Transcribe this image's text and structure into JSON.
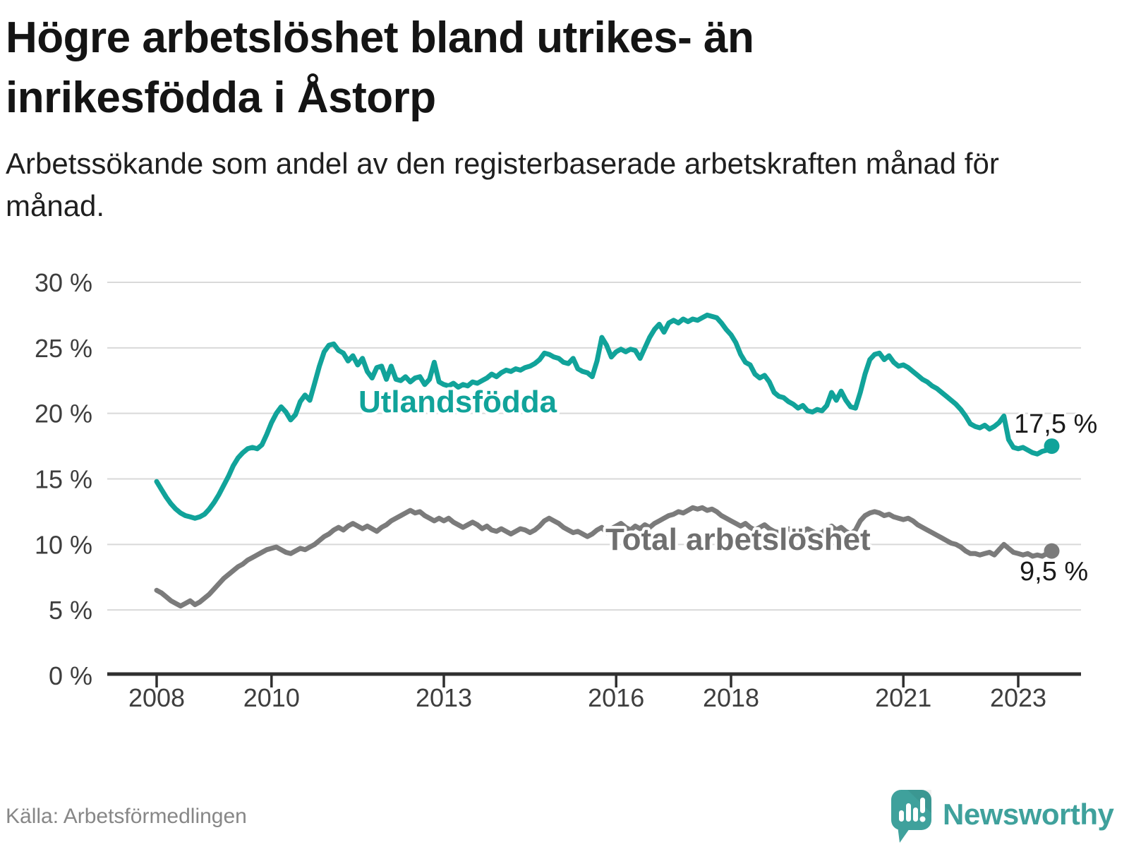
{
  "title": "Högre arbetslöshet bland utrikes- än inrikesfödda i Åstorp",
  "subtitle": "Arbetssökande som andel av den registerbaserade arbetskraften månad för månad.",
  "source": "Källa: Arbetsförmedlingen",
  "logo_text": "Newsworthy",
  "colors": {
    "teal_series": "#11a39a",
    "gray_series": "#7b7b7b",
    "gray_label": "#6f6f6f",
    "value_label": "#1a1a1a",
    "axis": "#2f2f2f",
    "tick_label": "#3e3e3e",
    "gridline": "#d9d9d9",
    "logo": "#3fa19c"
  },
  "chart_data": {
    "type": "line",
    "title": "Högre arbetslöshet bland utrikes- än inrikesfödda i Åstorp",
    "xlabel": "",
    "ylabel": "Arbetssökande som andel av den registerbaserade arbetskraften",
    "x_start_year": 2008,
    "x_start_month": 1,
    "months_per_point": 1,
    "ylim": [
      0,
      30
    ],
    "grid": true,
    "legend_position": "inline-labels",
    "y_tick_values": [
      0,
      5,
      10,
      15,
      20,
      25,
      30
    ],
    "y_tick_labels": [
      "0 %",
      "5 %",
      "10 %",
      "15 %",
      "20 %",
      "25 %",
      "30 %"
    ],
    "x_tick_years": [
      2008,
      2010,
      2013,
      2016,
      2018,
      2021,
      2023
    ],
    "x_tick_labels": [
      "2008",
      "2010",
      "2013",
      "2016",
      "2018",
      "2021",
      "2023"
    ],
    "series": [
      {
        "name": "Utlandsfödda",
        "color": "#11a39a",
        "end_value_label": "17,5 %",
        "values": [
          14.8,
          14.2,
          13.6,
          13.1,
          12.7,
          12.4,
          12.2,
          12.1,
          12.0,
          12.1,
          12.3,
          12.7,
          13.2,
          13.8,
          14.5,
          15.2,
          16.0,
          16.6,
          17.0,
          17.3,
          17.4,
          17.3,
          17.6,
          18.4,
          19.3,
          20.0,
          20.5,
          20.1,
          19.5,
          19.9,
          20.9,
          21.4,
          21.0,
          22.3,
          23.6,
          24.7,
          25.2,
          25.3,
          24.8,
          24.6,
          24.0,
          24.4,
          23.7,
          24.2,
          23.2,
          22.7,
          23.5,
          23.6,
          22.6,
          23.6,
          22.6,
          22.5,
          22.8,
          22.4,
          22.7,
          22.8,
          22.2,
          22.6,
          23.9,
          22.4,
          22.2,
          22.1,
          22.3,
          22.0,
          22.2,
          22.1,
          22.4,
          22.3,
          22.5,
          22.7,
          23.0,
          22.8,
          23.1,
          23.3,
          23.2,
          23.4,
          23.3,
          23.5,
          23.6,
          23.8,
          24.1,
          24.6,
          24.5,
          24.3,
          24.2,
          23.9,
          23.8,
          24.2,
          23.4,
          23.2,
          23.1,
          22.8,
          24.0,
          25.8,
          25.2,
          24.3,
          24.7,
          24.9,
          24.7,
          24.9,
          24.8,
          24.2,
          25.0,
          25.8,
          26.4,
          26.8,
          26.2,
          26.9,
          27.1,
          26.9,
          27.2,
          27.0,
          27.2,
          27.1,
          27.3,
          27.5,
          27.4,
          27.3,
          26.9,
          26.4,
          26.0,
          25.4,
          24.5,
          23.9,
          23.7,
          23.0,
          22.7,
          22.9,
          22.4,
          21.6,
          21.3,
          21.2,
          20.9,
          20.7,
          20.4,
          20.6,
          20.2,
          20.1,
          20.3,
          20.2,
          20.6,
          21.6,
          21.0,
          21.7,
          21.0,
          20.5,
          20.4,
          21.6,
          23.0,
          24.1,
          24.5,
          24.6,
          24.1,
          24.4,
          23.9,
          23.6,
          23.7,
          23.5,
          23.2,
          22.9,
          22.6,
          22.4,
          22.1,
          21.9,
          21.6,
          21.3,
          21.0,
          20.7,
          20.3,
          19.8,
          19.2,
          19.0,
          18.9,
          19.1,
          18.8,
          19.0,
          19.3,
          19.8,
          18.0,
          17.4,
          17.3,
          17.4,
          17.2,
          17.0,
          16.9,
          17.1,
          17.2,
          17.5
        ]
      },
      {
        "name": "Total arbetslöshet",
        "color": "#7b7b7b",
        "end_value_label": "9,5 %",
        "values": [
          6.5,
          6.3,
          6.0,
          5.7,
          5.5,
          5.3,
          5.5,
          5.7,
          5.4,
          5.6,
          5.9,
          6.2,
          6.6,
          7.0,
          7.4,
          7.7,
          8.0,
          8.3,
          8.5,
          8.8,
          9.0,
          9.2,
          9.4,
          9.6,
          9.7,
          9.8,
          9.6,
          9.4,
          9.3,
          9.5,
          9.7,
          9.6,
          9.8,
          10.0,
          10.3,
          10.6,
          10.8,
          11.1,
          11.3,
          11.1,
          11.4,
          11.6,
          11.4,
          11.2,
          11.4,
          11.2,
          11.0,
          11.3,
          11.5,
          11.8,
          12.0,
          12.2,
          12.4,
          12.6,
          12.4,
          12.5,
          12.2,
          12.0,
          11.8,
          12.0,
          11.8,
          12.0,
          11.7,
          11.5,
          11.3,
          11.5,
          11.7,
          11.5,
          11.2,
          11.4,
          11.1,
          11.0,
          11.2,
          11.0,
          10.8,
          11.0,
          11.2,
          11.1,
          10.9,
          11.1,
          11.4,
          11.8,
          12.0,
          11.8,
          11.6,
          11.3,
          11.1,
          10.9,
          11.0,
          10.8,
          10.6,
          10.8,
          11.1,
          11.3,
          10.9,
          11.2,
          11.4,
          11.6,
          11.3,
          11.1,
          11.4,
          11.2,
          11.5,
          11.3,
          11.6,
          11.8,
          12.0,
          12.2,
          12.3,
          12.5,
          12.4,
          12.6,
          12.8,
          12.7,
          12.8,
          12.6,
          12.7,
          12.5,
          12.2,
          12.0,
          11.8,
          11.6,
          11.4,
          11.6,
          11.3,
          11.1,
          11.3,
          11.5,
          11.2,
          11.0,
          10.9,
          11.1,
          11.2,
          11.0,
          10.8,
          11.0,
          11.2,
          11.0,
          10.8,
          10.9,
          11.2,
          11.4,
          11.1,
          11.3,
          11.0,
          10.8,
          11.1,
          11.8,
          12.2,
          12.4,
          12.5,
          12.4,
          12.2,
          12.3,
          12.1,
          12.0,
          11.9,
          12.0,
          11.8,
          11.5,
          11.3,
          11.1,
          10.9,
          10.7,
          10.5,
          10.3,
          10.1,
          10.0,
          9.8,
          9.5,
          9.3,
          9.3,
          9.2,
          9.3,
          9.4,
          9.2,
          9.6,
          10.0,
          9.7,
          9.4,
          9.3,
          9.2,
          9.3,
          9.1,
          9.2,
          9.1,
          9.3,
          9.5
        ]
      }
    ]
  }
}
